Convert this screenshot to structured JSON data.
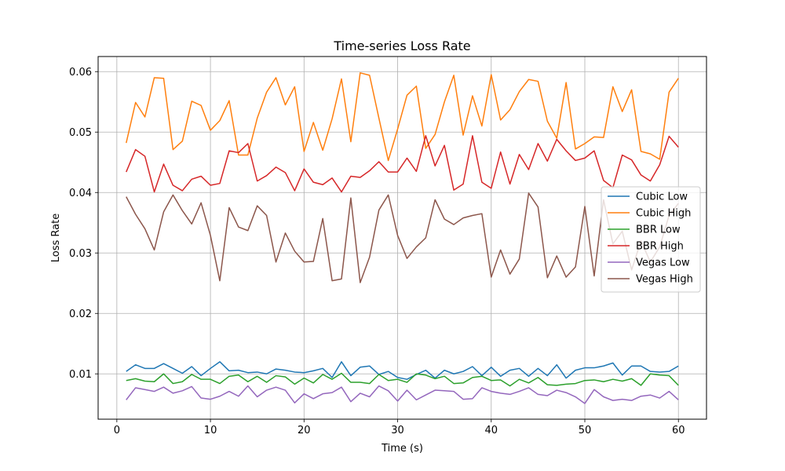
{
  "chart_data": {
    "type": "line",
    "title": "Time-series Loss Rate",
    "xlabel": "Time (s)",
    "ylabel": "Loss Rate",
    "xlim": [
      -2,
      63
    ],
    "ylim": [
      0.0025,
      0.0625
    ],
    "xticks": [
      0,
      10,
      20,
      30,
      40,
      50,
      60
    ],
    "yticks": [
      0.01,
      0.02,
      0.03,
      0.04,
      0.05,
      0.06
    ],
    "xtick_labels": [
      "0",
      "10",
      "20",
      "30",
      "40",
      "50",
      "60"
    ],
    "ytick_labels": [
      "0.01",
      "0.02",
      "0.03",
      "0.04",
      "0.05",
      "0.06"
    ],
    "grid": true,
    "legend_position": "center-right",
    "x": [
      1,
      2,
      3,
      4,
      5,
      6,
      7,
      8,
      9,
      10,
      11,
      12,
      13,
      14,
      15,
      16,
      17,
      18,
      19,
      20,
      21,
      22,
      23,
      24,
      25,
      26,
      27,
      28,
      29,
      30,
      31,
      32,
      33,
      34,
      35,
      36,
      37,
      38,
      39,
      40,
      41,
      42,
      43,
      44,
      45,
      46,
      47,
      48,
      49,
      50,
      51,
      52,
      53,
      54,
      55,
      56,
      57,
      58,
      59,
      60
    ],
    "series": [
      {
        "name": "Cubic Low",
        "color": "#1f77b4",
        "values": [
          0.0104,
          0.0115,
          0.0109,
          0.0109,
          0.0117,
          0.0109,
          0.0101,
          0.0112,
          0.0097,
          0.0109,
          0.012,
          0.0105,
          0.0106,
          0.0102,
          0.0103,
          0.01,
          0.0108,
          0.0106,
          0.0103,
          0.0102,
          0.0105,
          0.0109,
          0.0094,
          0.012,
          0.0097,
          0.0111,
          0.0113,
          0.0099,
          0.0104,
          0.0094,
          0.0091,
          0.0099,
          0.0106,
          0.0093,
          0.0106,
          0.01,
          0.0104,
          0.0112,
          0.0097,
          0.0111,
          0.0096,
          0.0106,
          0.0109,
          0.0096,
          0.0109,
          0.0097,
          0.0115,
          0.0093,
          0.0106,
          0.011,
          0.011,
          0.0113,
          0.0118,
          0.0098,
          0.0113,
          0.0113,
          0.0104,
          0.0103,
          0.0104,
          0.0113
        ]
      },
      {
        "name": "Cubic High",
        "color": "#ff7f0e",
        "values": [
          0.0482,
          0.0549,
          0.0525,
          0.059,
          0.0589,
          0.0471,
          0.0485,
          0.0551,
          0.0544,
          0.0503,
          0.0519,
          0.0552,
          0.0462,
          0.0462,
          0.0523,
          0.0566,
          0.059,
          0.0545,
          0.0575,
          0.0468,
          0.0516,
          0.047,
          0.0522,
          0.0588,
          0.0484,
          0.0598,
          0.0594,
          0.0523,
          0.0453,
          0.0505,
          0.0561,
          0.0576,
          0.0473,
          0.0496,
          0.055,
          0.0594,
          0.0495,
          0.056,
          0.051,
          0.0595,
          0.052,
          0.0537,
          0.0567,
          0.0587,
          0.0584,
          0.0518,
          0.049,
          0.0582,
          0.0472,
          0.0481,
          0.0492,
          0.0491,
          0.0575,
          0.0534,
          0.057,
          0.0468,
          0.0464,
          0.0455,
          0.0566,
          0.0589
        ]
      },
      {
        "name": "BBR Low",
        "color": "#2ca02c",
        "values": [
          0.0089,
          0.0092,
          0.0088,
          0.0087,
          0.01,
          0.0084,
          0.0087,
          0.0099,
          0.0091,
          0.0091,
          0.0084,
          0.0096,
          0.0098,
          0.0087,
          0.0096,
          0.0086,
          0.0097,
          0.0095,
          0.0083,
          0.0093,
          0.0085,
          0.0099,
          0.0091,
          0.0101,
          0.0086,
          0.0086,
          0.0084,
          0.0099,
          0.0089,
          0.0091,
          0.0086,
          0.01,
          0.0098,
          0.0092,
          0.0096,
          0.0084,
          0.0085,
          0.0094,
          0.0096,
          0.0089,
          0.009,
          0.008,
          0.0091,
          0.0085,
          0.0094,
          0.0082,
          0.0081,
          0.0083,
          0.0084,
          0.0089,
          0.009,
          0.0087,
          0.0091,
          0.0088,
          0.0092,
          0.0081,
          0.01,
          0.0098,
          0.0097,
          0.0081
        ]
      },
      {
        "name": "BBR High",
        "color": "#d62728",
        "values": [
          0.0434,
          0.0471,
          0.046,
          0.0401,
          0.0447,
          0.0412,
          0.0403,
          0.0422,
          0.0427,
          0.0412,
          0.0415,
          0.0469,
          0.0466,
          0.0481,
          0.0419,
          0.0428,
          0.0442,
          0.0433,
          0.0403,
          0.0439,
          0.0417,
          0.0413,
          0.0424,
          0.0401,
          0.0427,
          0.0425,
          0.0436,
          0.0451,
          0.0434,
          0.0434,
          0.0457,
          0.0435,
          0.0494,
          0.0444,
          0.0478,
          0.0404,
          0.0414,
          0.0494,
          0.0417,
          0.0407,
          0.0467,
          0.0414,
          0.0463,
          0.0438,
          0.0481,
          0.0452,
          0.0488,
          0.0469,
          0.0453,
          0.0457,
          0.0469,
          0.042,
          0.0408,
          0.0462,
          0.0454,
          0.0429,
          0.0419,
          0.0446,
          0.0493,
          0.0475
        ]
      },
      {
        "name": "Vegas Low",
        "color": "#9467bd",
        "values": [
          0.0057,
          0.0077,
          0.0074,
          0.0071,
          0.0078,
          0.0068,
          0.0072,
          0.0079,
          0.006,
          0.0058,
          0.0063,
          0.0071,
          0.0063,
          0.008,
          0.0062,
          0.0073,
          0.0078,
          0.0073,
          0.0052,
          0.0067,
          0.0059,
          0.0067,
          0.0069,
          0.0078,
          0.0054,
          0.0068,
          0.0062,
          0.008,
          0.0072,
          0.0055,
          0.0073,
          0.0057,
          0.0065,
          0.0073,
          0.0072,
          0.0071,
          0.0058,
          0.0059,
          0.0077,
          0.0071,
          0.0068,
          0.0066,
          0.0071,
          0.0077,
          0.0066,
          0.0064,
          0.0073,
          0.0069,
          0.0062,
          0.0051,
          0.0074,
          0.0062,
          0.0056,
          0.0058,
          0.0056,
          0.0063,
          0.0065,
          0.006,
          0.0071,
          0.0057
        ]
      },
      {
        "name": "Vegas High",
        "color": "#8c564b",
        "values": [
          0.0393,
          0.0364,
          0.034,
          0.0305,
          0.0368,
          0.0396,
          0.037,
          0.0348,
          0.0383,
          0.0329,
          0.0254,
          0.0375,
          0.0343,
          0.0337,
          0.0378,
          0.0362,
          0.0285,
          0.0333,
          0.0303,
          0.0285,
          0.0286,
          0.0357,
          0.0254,
          0.0257,
          0.0391,
          0.0251,
          0.0293,
          0.0371,
          0.0396,
          0.0329,
          0.0291,
          0.031,
          0.0325,
          0.0388,
          0.0356,
          0.0347,
          0.0358,
          0.0362,
          0.0365,
          0.026,
          0.0305,
          0.0265,
          0.029,
          0.0399,
          0.0376,
          0.0259,
          0.0295,
          0.026,
          0.0277,
          0.0377,
          0.0262,
          0.0388,
          0.0315,
          0.0336,
          0.0272,
          0.032,
          0.0285,
          0.031,
          0.0362,
          0.0382
        ]
      }
    ]
  }
}
